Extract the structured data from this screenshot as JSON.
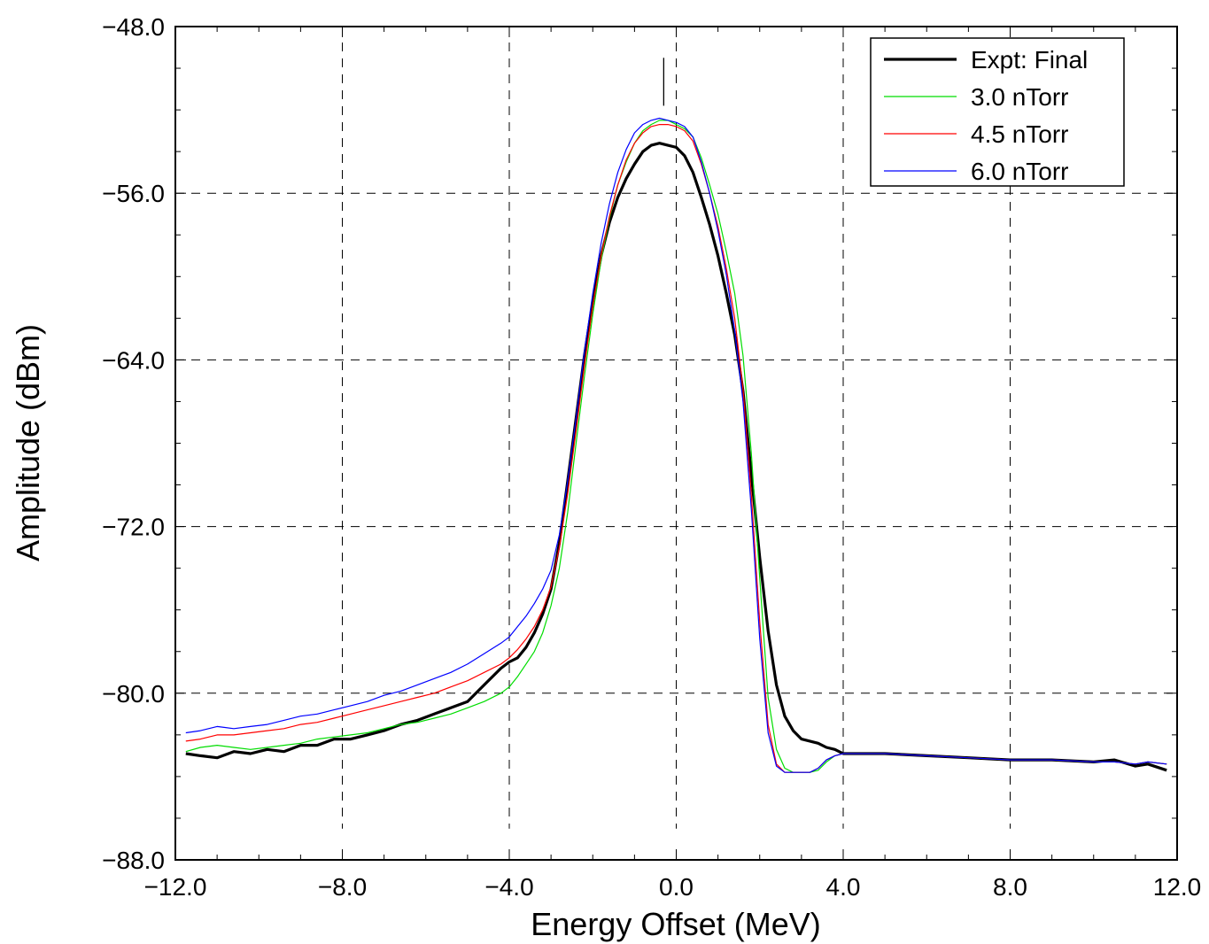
{
  "chart_data": {
    "type": "line",
    "title": "",
    "xlabel": "Energy Offset (MeV)",
    "ylabel": "Amplitude (dBm)",
    "xlim": [
      -12.0,
      12.0
    ],
    "ylim": [
      -88.0,
      -48.0
    ],
    "x_ticks": [
      "−12.0",
      "−8.0",
      "−4.0",
      "0.0",
      "4.0",
      "8.0",
      "12.0"
    ],
    "y_ticks": [
      "−48.0",
      "−56.0",
      "−64.0",
      "−72.0",
      "−80.0",
      "−88.0"
    ],
    "grid": "dashed",
    "legend_position": "top-right",
    "annotations": [
      {
        "type": "vertical-marker",
        "x": -0.3,
        "y_range": [
          -49.5,
          -51.8
        ]
      }
    ],
    "series": [
      {
        "name": "Expt: Final",
        "color": "#000000",
        "width": 3.2,
        "x": [
          -11.75,
          -11.4,
          -11.0,
          -10.6,
          -10.2,
          -9.8,
          -9.4,
          -9.0,
          -8.6,
          -8.2,
          -7.8,
          -7.4,
          -7.0,
          -6.6,
          -6.2,
          -5.8,
          -5.4,
          -5.0,
          -4.6,
          -4.2,
          -4.0,
          -3.8,
          -3.6,
          -3.4,
          -3.2,
          -3.0,
          -2.8,
          -2.6,
          -2.4,
          -2.2,
          -2.0,
          -1.8,
          -1.6,
          -1.4,
          -1.2,
          -1.0,
          -0.8,
          -0.6,
          -0.4,
          -0.2,
          0.0,
          0.2,
          0.4,
          0.6,
          0.8,
          1.0,
          1.2,
          1.4,
          1.6,
          1.8,
          2.0,
          2.2,
          2.4,
          2.6,
          2.8,
          3.0,
          3.2,
          3.4,
          3.6,
          3.8,
          4.0,
          5.0,
          6.0,
          7.0,
          8.0,
          9.0,
          10.0,
          10.5,
          11.0,
          11.3,
          11.75
        ],
        "y": [
          -82.9,
          -83.0,
          -83.1,
          -82.8,
          -82.9,
          -82.7,
          -82.8,
          -82.5,
          -82.5,
          -82.2,
          -82.2,
          -82.0,
          -81.8,
          -81.5,
          -81.3,
          -81.0,
          -80.7,
          -80.4,
          -79.6,
          -78.8,
          -78.5,
          -78.3,
          -77.8,
          -77.1,
          -76.2,
          -75.0,
          -72.8,
          -69.8,
          -66.8,
          -63.8,
          -61.2,
          -59.0,
          -57.4,
          -56.2,
          -55.3,
          -54.6,
          -54.0,
          -53.7,
          -53.6,
          -53.7,
          -53.8,
          -54.2,
          -55.0,
          -56.2,
          -57.5,
          -59.0,
          -60.8,
          -62.8,
          -65.5,
          -69.5,
          -73.5,
          -77.0,
          -79.6,
          -81.1,
          -81.8,
          -82.2,
          -82.3,
          -82.4,
          -82.6,
          -82.7,
          -82.9,
          -82.9,
          -83.0,
          -83.1,
          -83.2,
          -83.2,
          -83.3,
          -83.2,
          -83.5,
          -83.4,
          -83.7
        ]
      },
      {
        "name": "3.0 nTorr",
        "color": "#00dd00",
        "width": 1.2,
        "x": [
          -11.75,
          -11.4,
          -11.0,
          -10.6,
          -10.2,
          -9.8,
          -9.4,
          -9.0,
          -8.6,
          -8.2,
          -7.8,
          -7.4,
          -7.0,
          -6.6,
          -6.2,
          -5.8,
          -5.4,
          -5.0,
          -4.6,
          -4.2,
          -4.0,
          -3.8,
          -3.6,
          -3.4,
          -3.2,
          -3.0,
          -2.8,
          -2.6,
          -2.4,
          -2.2,
          -2.0,
          -1.8,
          -1.6,
          -1.4,
          -1.2,
          -1.0,
          -0.8,
          -0.6,
          -0.4,
          -0.2,
          0.0,
          0.2,
          0.4,
          0.6,
          0.8,
          1.0,
          1.2,
          1.4,
          1.6,
          1.8,
          2.0,
          2.2,
          2.4,
          2.6,
          2.8,
          3.0,
          3.2,
          3.4,
          3.6,
          3.8,
          4.0,
          5.0,
          6.0,
          7.0,
          8.0,
          9.0,
          10.0,
          10.5,
          11.0,
          11.3,
          11.75
        ],
        "y": [
          -82.8,
          -82.6,
          -82.5,
          -82.6,
          -82.7,
          -82.6,
          -82.5,
          -82.4,
          -82.2,
          -82.1,
          -82.0,
          -81.9,
          -81.7,
          -81.5,
          -81.4,
          -81.2,
          -81.0,
          -80.7,
          -80.4,
          -80.0,
          -79.7,
          -79.2,
          -78.6,
          -78.0,
          -77.1,
          -75.8,
          -74.0,
          -71.3,
          -68.0,
          -64.8,
          -61.8,
          -59.2,
          -57.2,
          -55.6,
          -54.5,
          -53.6,
          -53.0,
          -52.7,
          -52.5,
          -52.5,
          -52.7,
          -52.9,
          -53.3,
          -54.3,
          -55.6,
          -57.0,
          -58.8,
          -60.8,
          -63.8,
          -68.5,
          -74.5,
          -80.2,
          -82.7,
          -83.6,
          -83.8,
          -83.8,
          -83.8,
          -83.7,
          -83.3,
          -83.0,
          -82.9,
          -82.9,
          -83.0,
          -83.1,
          -83.2,
          -83.2,
          -83.3,
          -83.3,
          -83.4,
          -83.3,
          -83.4
        ]
      },
      {
        "name": "4.5 nTorr",
        "color": "#ff0000",
        "width": 1.2,
        "x": [
          -11.75,
          -11.4,
          -11.0,
          -10.6,
          -10.2,
          -9.8,
          -9.4,
          -9.0,
          -8.6,
          -8.2,
          -7.8,
          -7.4,
          -7.0,
          -6.6,
          -6.2,
          -5.8,
          -5.4,
          -5.0,
          -4.6,
          -4.2,
          -4.0,
          -3.8,
          -3.6,
          -3.4,
          -3.2,
          -3.0,
          -2.8,
          -2.6,
          -2.4,
          -2.2,
          -2.0,
          -1.8,
          -1.6,
          -1.4,
          -1.2,
          -1.0,
          -0.8,
          -0.6,
          -0.4,
          -0.2,
          0.0,
          0.2,
          0.4,
          0.6,
          0.8,
          1.0,
          1.2,
          1.4,
          1.6,
          1.8,
          2.0,
          2.2,
          2.4,
          2.6,
          2.8,
          3.0,
          3.2,
          3.4,
          3.6,
          3.8,
          4.0,
          5.0,
          6.0,
          7.0,
          8.0,
          9.0,
          10.0,
          10.5,
          11.0,
          11.3,
          11.75
        ],
        "y": [
          -82.3,
          -82.2,
          -82.0,
          -82.0,
          -81.9,
          -81.8,
          -81.7,
          -81.5,
          -81.4,
          -81.2,
          -81.0,
          -80.8,
          -80.6,
          -80.4,
          -80.2,
          -80.0,
          -79.7,
          -79.4,
          -79.0,
          -78.6,
          -78.3,
          -77.9,
          -77.4,
          -76.8,
          -76.0,
          -74.9,
          -73.0,
          -70.4,
          -67.4,
          -64.3,
          -61.4,
          -59.0,
          -57.1,
          -55.6,
          -54.4,
          -53.6,
          -53.1,
          -52.8,
          -52.7,
          -52.7,
          -52.8,
          -53.0,
          -53.5,
          -54.6,
          -56.0,
          -57.6,
          -59.6,
          -62.0,
          -65.4,
          -70.5,
          -76.6,
          -81.5,
          -83.4,
          -83.8,
          -83.8,
          -83.8,
          -83.8,
          -83.6,
          -83.2,
          -83.0,
          -82.9,
          -82.9,
          -83.0,
          -83.1,
          -83.2,
          -83.2,
          -83.3,
          -83.3,
          -83.4,
          -83.3,
          -83.4
        ]
      },
      {
        "name": "6.0 nTorr",
        "color": "#0000ff",
        "width": 1.2,
        "x": [
          -11.75,
          -11.4,
          -11.0,
          -10.6,
          -10.2,
          -9.8,
          -9.4,
          -9.0,
          -8.6,
          -8.2,
          -7.8,
          -7.4,
          -7.0,
          -6.6,
          -6.2,
          -5.8,
          -5.4,
          -5.0,
          -4.6,
          -4.2,
          -4.0,
          -3.8,
          -3.6,
          -3.4,
          -3.2,
          -3.0,
          -2.8,
          -2.6,
          -2.4,
          -2.2,
          -2.0,
          -1.8,
          -1.6,
          -1.4,
          -1.2,
          -1.0,
          -0.8,
          -0.6,
          -0.4,
          -0.2,
          0.0,
          0.2,
          0.4,
          0.6,
          0.8,
          1.0,
          1.2,
          1.4,
          1.6,
          1.8,
          2.0,
          2.2,
          2.4,
          2.6,
          2.8,
          3.0,
          3.2,
          3.4,
          3.6,
          3.8,
          4.0,
          5.0,
          6.0,
          7.0,
          8.0,
          9.0,
          10.0,
          10.5,
          11.0,
          11.3,
          11.75
        ],
        "y": [
          -81.9,
          -81.8,
          -81.6,
          -81.7,
          -81.6,
          -81.5,
          -81.3,
          -81.1,
          -81.0,
          -80.8,
          -80.6,
          -80.4,
          -80.1,
          -79.9,
          -79.6,
          -79.3,
          -79.0,
          -78.6,
          -78.1,
          -77.6,
          -77.3,
          -76.8,
          -76.3,
          -75.7,
          -75.0,
          -74.1,
          -72.4,
          -69.8,
          -66.8,
          -63.6,
          -60.8,
          -58.4,
          -56.5,
          -55.0,
          -53.9,
          -53.1,
          -52.7,
          -52.5,
          -52.4,
          -52.5,
          -52.6,
          -52.8,
          -53.3,
          -54.5,
          -56.0,
          -57.8,
          -59.9,
          -62.6,
          -66.0,
          -71.2,
          -77.4,
          -81.9,
          -83.5,
          -83.8,
          -83.8,
          -83.8,
          -83.8,
          -83.6,
          -83.2,
          -83.0,
          -82.9,
          -82.9,
          -83.0,
          -83.1,
          -83.2,
          -83.2,
          -83.3,
          -83.3,
          -83.4,
          -83.3,
          -83.4
        ]
      }
    ]
  }
}
